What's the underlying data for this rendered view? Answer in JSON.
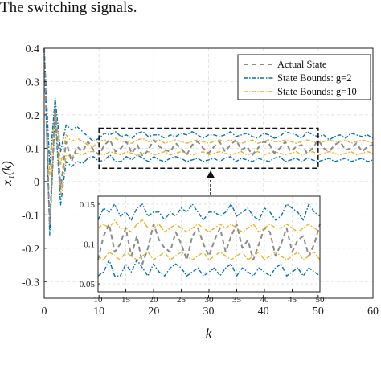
{
  "caption": "The switching signals.",
  "chart_data": {
    "type": "line",
    "xlabel": "k",
    "ylabel": "x₁(k)",
    "xlim": [
      0,
      60
    ],
    "ylim": [
      -0.35,
      0.4
    ],
    "xticks": [
      0,
      10,
      20,
      30,
      40,
      50,
      60
    ],
    "yticks": [
      -0.3,
      -0.2,
      -0.1,
      0,
      0.1,
      0.2,
      0.3,
      0.4
    ],
    "xtick_labels": [
      "0",
      "10",
      "20",
      "30",
      "40",
      "50",
      "60"
    ],
    "ytick_labels": [
      "-0.3",
      "-0.2",
      "-0.1",
      "0",
      "0.1",
      "0.2",
      "0.3",
      "0.4"
    ],
    "grid": true,
    "legend_position": "top-right",
    "colors": {
      "actual": "#8c8c8c",
      "g2": "#0072bd",
      "g10": "#edb120"
    },
    "x": [
      0,
      1,
      2,
      3,
      4,
      5,
      6,
      7,
      8,
      9,
      10,
      11,
      12,
      13,
      14,
      15,
      16,
      17,
      18,
      19,
      20,
      21,
      22,
      23,
      24,
      25,
      26,
      27,
      28,
      29,
      30,
      31,
      32,
      33,
      34,
      35,
      36,
      37,
      38,
      39,
      40,
      41,
      42,
      43,
      44,
      45,
      46,
      47,
      48,
      49,
      50,
      51,
      52,
      53,
      54,
      55,
      56,
      57,
      58,
      59,
      60
    ],
    "series": [
      {
        "name": "Actual State",
        "style": "dashed",
        "values": [
          0.4,
          -0.13,
          0.22,
          -0.02,
          0.12,
          0.06,
          0.105,
          0.09,
          0.12,
          0.095,
          0.08,
          0.11,
          0.125,
          0.09,
          0.1,
          0.12,
          0.085,
          0.11,
          0.075,
          0.095,
          0.125,
          0.105,
          0.095,
          0.09,
          0.115,
          0.1,
          0.08,
          0.11,
          0.12,
          0.1,
          0.085,
          0.105,
          0.12,
          0.09,
          0.11,
          0.125,
          0.095,
          0.105,
          0.08,
          0.1,
          0.12,
          0.115,
          0.085,
          0.1,
          0.12,
          0.09,
          0.105,
          0.11,
          0.085,
          0.1,
          0.125,
          0.1,
          0.09,
          0.11,
          0.12,
          0.095,
          0.1,
          0.115,
          0.09,
          0.105,
          0.11
        ]
      },
      {
        "name": "State Bounds: g=2",
        "style": "dashdot",
        "band": true,
        "upper": [
          0.4,
          0.05,
          0.25,
          0.09,
          0.17,
          0.155,
          0.165,
          0.15,
          0.135,
          0.12,
          0.13,
          0.145,
          0.14,
          0.15,
          0.135,
          0.14,
          0.13,
          0.145,
          0.15,
          0.135,
          0.14,
          0.14,
          0.13,
          0.14,
          0.135,
          0.145,
          0.14,
          0.15,
          0.14,
          0.13,
          0.14,
          0.14,
          0.135,
          0.14,
          0.15,
          0.135,
          0.14,
          0.145,
          0.135,
          0.13,
          0.145,
          0.14,
          0.13,
          0.135,
          0.15,
          0.145,
          0.14,
          0.13,
          0.15,
          0.14,
          0.135,
          0.14,
          0.125,
          0.135,
          0.14,
          0.13,
          0.145,
          0.14,
          0.135,
          0.14,
          0.13
        ],
        "lower": [
          0.4,
          -0.16,
          0.2,
          -0.07,
          0.06,
          0.045,
          0.06,
          0.055,
          0.07,
          0.075,
          0.06,
          0.065,
          0.08,
          0.06,
          0.06,
          0.075,
          0.065,
          0.08,
          0.07,
          0.06,
          0.075,
          0.065,
          0.06,
          0.07,
          0.075,
          0.07,
          0.06,
          0.065,
          0.07,
          0.06,
          0.065,
          0.07,
          0.06,
          0.07,
          0.075,
          0.06,
          0.07,
          0.065,
          0.06,
          0.07,
          0.065,
          0.06,
          0.07,
          0.075,
          0.06,
          0.065,
          0.07,
          0.06,
          0.07,
          0.065,
          0.06,
          0.065,
          0.07,
          0.06,
          0.065,
          0.07,
          0.06,
          0.065,
          0.07,
          0.06,
          0.065
        ]
      },
      {
        "name": "State Bounds: g=10",
        "style": "dashdot",
        "band": true,
        "upper": [
          0.4,
          0.02,
          0.23,
          0.05,
          0.14,
          0.12,
          0.13,
          0.12,
          0.11,
          0.105,
          0.12,
          0.125,
          0.12,
          0.13,
          0.12,
          0.12,
          0.115,
          0.125,
          0.13,
          0.12,
          0.12,
          0.125,
          0.115,
          0.12,
          0.125,
          0.12,
          0.115,
          0.12,
          0.125,
          0.12,
          0.115,
          0.12,
          0.125,
          0.12,
          0.125,
          0.12,
          0.115,
          0.12,
          0.125,
          0.115,
          0.12,
          0.125,
          0.12,
          0.12,
          0.125,
          0.12,
          0.115,
          0.12,
          0.125,
          0.12,
          0.115,
          0.12,
          0.125,
          0.12,
          0.12,
          0.125,
          0.115,
          0.12,
          0.125,
          0.12,
          0.115
        ],
        "lower": [
          0.4,
          -0.14,
          0.21,
          -0.04,
          0.08,
          0.075,
          0.085,
          0.08,
          0.09,
          0.09,
          0.085,
          0.08,
          0.09,
          0.085,
          0.08,
          0.09,
          0.085,
          0.08,
          0.085,
          0.09,
          0.08,
          0.085,
          0.09,
          0.08,
          0.085,
          0.09,
          0.085,
          0.08,
          0.085,
          0.09,
          0.08,
          0.085,
          0.09,
          0.085,
          0.08,
          0.085,
          0.09,
          0.08,
          0.085,
          0.09,
          0.08,
          0.085,
          0.09,
          0.085,
          0.08,
          0.085,
          0.09,
          0.08,
          0.085,
          0.09,
          0.08,
          0.085,
          0.09,
          0.085,
          0.08,
          0.085,
          0.09,
          0.08,
          0.085,
          0.09,
          0.085
        ]
      }
    ],
    "inset": {
      "xlim": [
        10,
        50
      ],
      "ylim": [
        0.04,
        0.16
      ],
      "xticks": [
        10,
        15,
        20,
        25,
        30,
        35,
        40,
        45,
        50
      ],
      "yticks": [
        0.05,
        0.1,
        0.15
      ],
      "xtick_labels": [
        "10",
        "15",
        "20",
        "25",
        "30",
        "35",
        "40",
        "45",
        "50"
      ],
      "ytick_labels": [
        "0.05",
        "0.1",
        "0.15"
      ],
      "zoom_region": {
        "x": [
          10,
          50
        ],
        "y": [
          0.04,
          0.16
        ]
      }
    }
  }
}
